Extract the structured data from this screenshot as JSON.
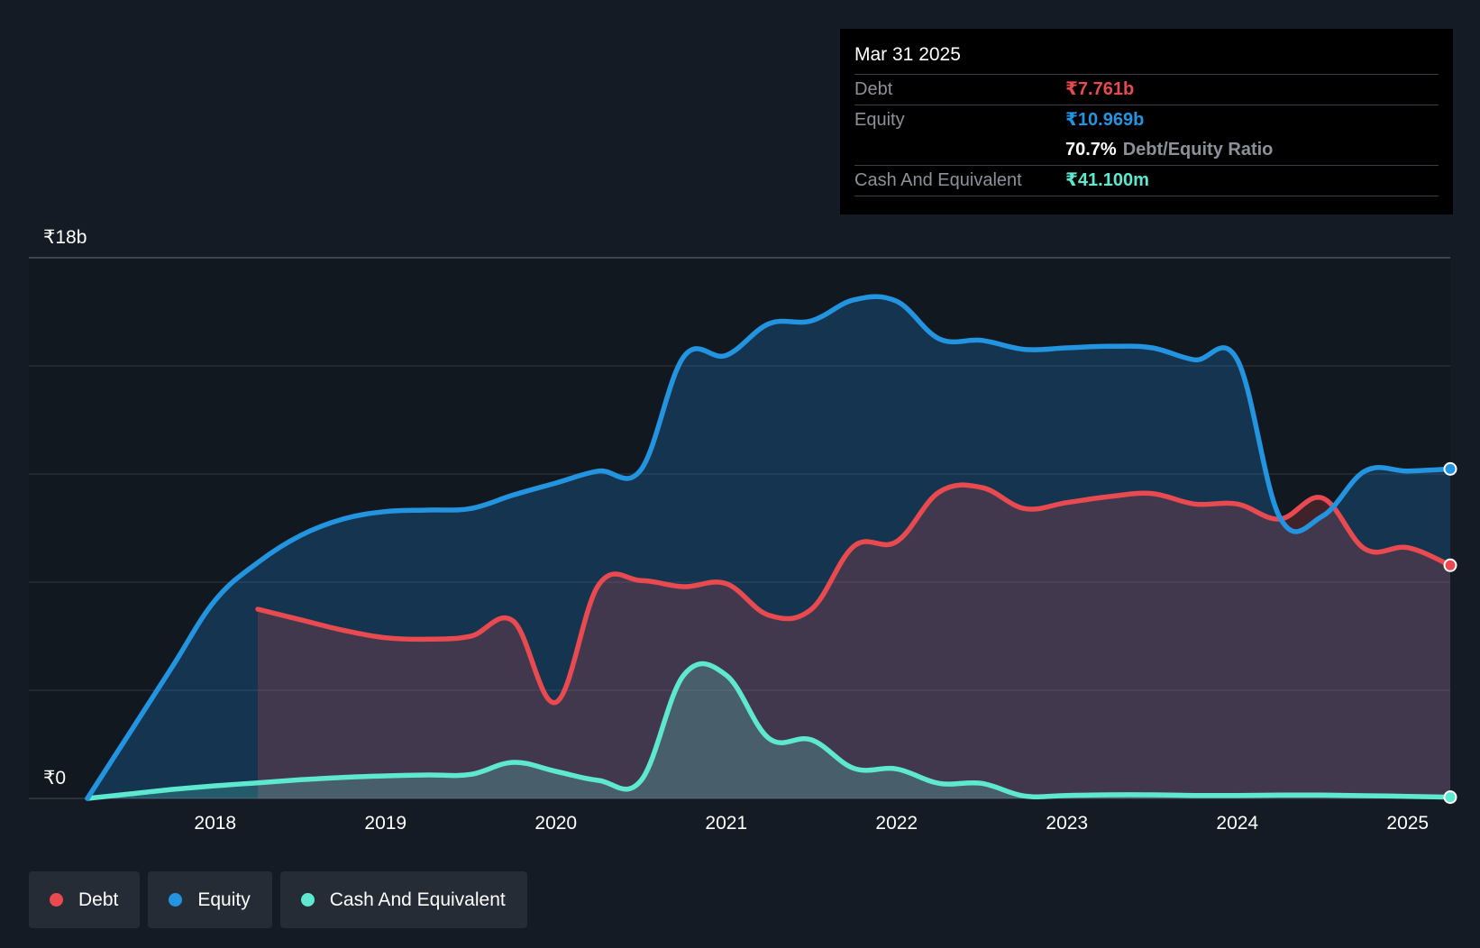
{
  "chart_data": {
    "type": "area",
    "title": "",
    "xlabel": "",
    "ylabel": "",
    "y_axis_labels": [
      "₹18b",
      "₹0"
    ],
    "ylim": [
      0,
      18
    ],
    "y_unit": "₹b",
    "x_tick_labels": [
      "2018",
      "2019",
      "2020",
      "2021",
      "2022",
      "2023",
      "2024",
      "2025"
    ],
    "x_range": [
      2017.25,
      2025.25
    ],
    "grid": true,
    "legend_position": "bottom-left",
    "series": [
      {
        "name": "Debt",
        "color": "#e84a4f",
        "x": [
          2018.25,
          2018.5,
          2018.75,
          2019.0,
          2019.25,
          2019.5,
          2019.75,
          2020.0,
          2020.25,
          2020.5,
          2020.75,
          2021.0,
          2021.25,
          2021.5,
          2021.75,
          2022.0,
          2022.25,
          2022.5,
          2022.75,
          2023.0,
          2023.25,
          2023.5,
          2023.75,
          2024.0,
          2024.25,
          2024.5,
          2024.75,
          2025.0,
          2025.25
        ],
        "values": [
          6.3,
          5.95,
          5.6,
          5.35,
          5.3,
          5.4,
          5.9,
          3.2,
          7.1,
          7.25,
          7.05,
          7.15,
          6.1,
          6.3,
          8.4,
          8.55,
          10.2,
          10.35,
          9.65,
          9.85,
          10.05,
          10.15,
          9.8,
          9.8,
          9.3,
          10.0,
          8.3,
          8.35,
          7.761
        ]
      },
      {
        "name": "Equity",
        "color": "#2394df",
        "x": [
          2017.25,
          2017.5,
          2017.75,
          2018.0,
          2018.25,
          2018.5,
          2018.75,
          2019.0,
          2019.25,
          2019.5,
          2019.75,
          2020.0,
          2020.25,
          2020.5,
          2020.75,
          2021.0,
          2021.25,
          2021.5,
          2021.75,
          2022.0,
          2022.25,
          2022.5,
          2022.75,
          2023.0,
          2023.25,
          2023.5,
          2023.75,
          2024.0,
          2024.25,
          2024.5,
          2024.75,
          2025.0,
          2025.25
        ],
        "values": [
          0.0,
          2.2,
          4.4,
          6.6,
          7.85,
          8.75,
          9.3,
          9.55,
          9.6,
          9.65,
          10.1,
          10.5,
          10.9,
          10.95,
          14.7,
          14.75,
          15.8,
          15.9,
          16.6,
          16.55,
          15.3,
          15.25,
          14.95,
          15.0,
          15.05,
          15.0,
          14.6,
          14.6,
          9.35,
          9.4,
          10.9,
          10.9,
          10.969
        ]
      },
      {
        "name": "Cash And Equivalent",
        "color": "#5ee8d0",
        "x": [
          2017.25,
          2017.5,
          2017.75,
          2018.0,
          2018.25,
          2018.5,
          2018.75,
          2019.0,
          2019.25,
          2019.5,
          2019.75,
          2020.0,
          2020.25,
          2020.5,
          2020.75,
          2021.0,
          2021.25,
          2021.5,
          2021.75,
          2022.0,
          2022.25,
          2022.5,
          2022.75,
          2023.0,
          2023.25,
          2023.5,
          2023.75,
          2024.0,
          2024.25,
          2024.5,
          2024.75,
          2025.0,
          2025.25
        ],
        "values": [
          0.0,
          0.15,
          0.3,
          0.42,
          0.52,
          0.62,
          0.7,
          0.75,
          0.78,
          0.8,
          1.2,
          0.9,
          0.6,
          0.6,
          4.1,
          4.1,
          2.0,
          1.95,
          1.0,
          0.98,
          0.5,
          0.5,
          0.08,
          0.1,
          0.12,
          0.12,
          0.1,
          0.1,
          0.11,
          0.11,
          0.09,
          0.07,
          0.0411
        ]
      }
    ]
  },
  "tooltip": {
    "date": "Mar 31 2025",
    "debt_label": "Debt",
    "debt_value": "₹7.761b",
    "equity_label": "Equity",
    "equity_value": "₹10.969b",
    "ratio_value": "70.7%",
    "ratio_label": "Debt/Equity Ratio",
    "cash_label": "Cash And Equivalent",
    "cash_value": "₹41.100m"
  },
  "legend": [
    {
      "label": "Debt",
      "color": "#e84a4f"
    },
    {
      "label": "Equity",
      "color": "#2394df"
    },
    {
      "label": "Cash And Equivalent",
      "color": "#5ee8d0"
    }
  ]
}
